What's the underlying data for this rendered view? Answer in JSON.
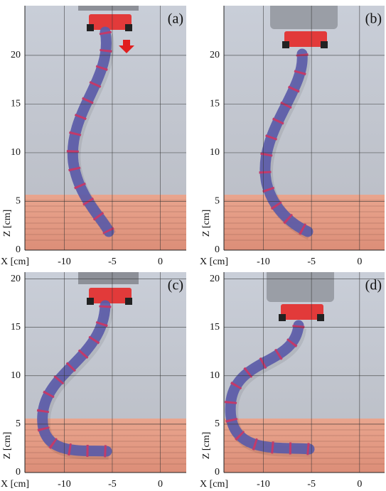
{
  "panels": [
    {
      "label": "(a)",
      "xlabel": "X [cm]",
      "ylabel": "Z [cm]",
      "xlim": [
        -14.1,
        2.7
      ],
      "ylim": [
        0,
        25.1
      ],
      "xticks": [
        -10,
        -5,
        0
      ],
      "yticks": [
        0,
        5,
        10,
        15,
        20
      ]
    },
    {
      "label": "(b)",
      "xlabel": "X [cm]",
      "ylabel": "Z [cm]",
      "xlim": [
        -14.1,
        2.6
      ],
      "ylim": [
        0,
        25.1
      ],
      "xticks": [
        -10,
        -5,
        0
      ],
      "yticks": [
        0,
        5,
        10,
        15,
        20
      ]
    },
    {
      "label": "(c)",
      "xlabel": "X [cm]",
      "ylabel": "Z [cm]",
      "xlim": [
        -14.1,
        2.7
      ],
      "ylim": [
        0,
        20.7
      ],
      "xticks": [
        -10,
        -5,
        0
      ],
      "yticks": [
        0,
        5,
        10,
        15,
        20
      ]
    },
    {
      "label": "(d)",
      "xlabel": "X [cm]",
      "ylabel": "Z [cm]",
      "xlim": [
        -14.1,
        2.6
      ],
      "ylim": [
        0,
        20.7
      ],
      "xticks": [
        -10,
        -5,
        0
      ],
      "yticks": [
        0,
        5,
        10,
        15,
        20
      ]
    }
  ]
}
